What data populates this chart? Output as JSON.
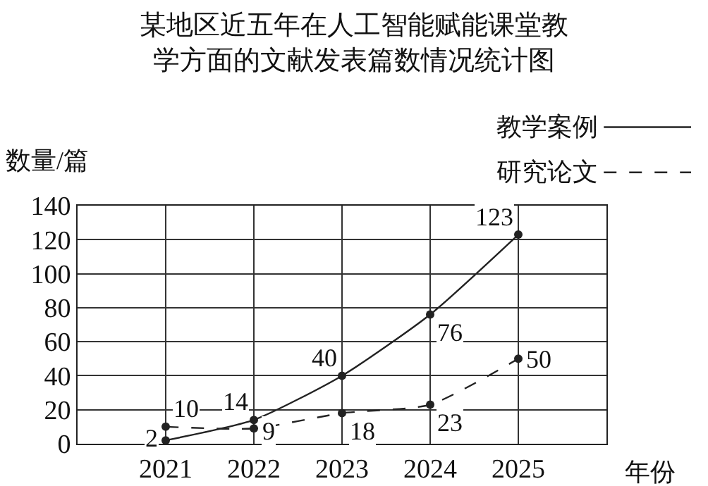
{
  "chart_data": {
    "type": "line",
    "title": "某地区近五年在人工智能赋能课堂教学方面的文献发表篇数情况统计图",
    "xlabel": "年份",
    "ylabel": "数量/篇",
    "x": [
      2021,
      2022,
      2023,
      2024,
      2025
    ],
    "series": [
      {
        "name": "教学案例",
        "color": "#222222",
        "line_style": "solid",
        "values": [
          2,
          14,
          40,
          76,
          123
        ]
      },
      {
        "name": "研究论文",
        "color": "#222222",
        "line_style": "dashed",
        "values": [
          10,
          9,
          18,
          23,
          50
        ]
      }
    ],
    "xlim": [
      2020,
      2026
    ],
    "xticks": [
      {
        "value": 2020,
        "label": null
      },
      2021,
      2022,
      2023,
      2024,
      2025,
      {
        "value": 2026,
        "label": null
      }
    ],
    "ylim": [
      0,
      140
    ],
    "yticks": [
      0,
      20,
      40,
      60,
      80,
      100,
      120,
      140
    ],
    "grid": true,
    "legend": "top right",
    "marker": "circle",
    "data_labels": true
  }
}
